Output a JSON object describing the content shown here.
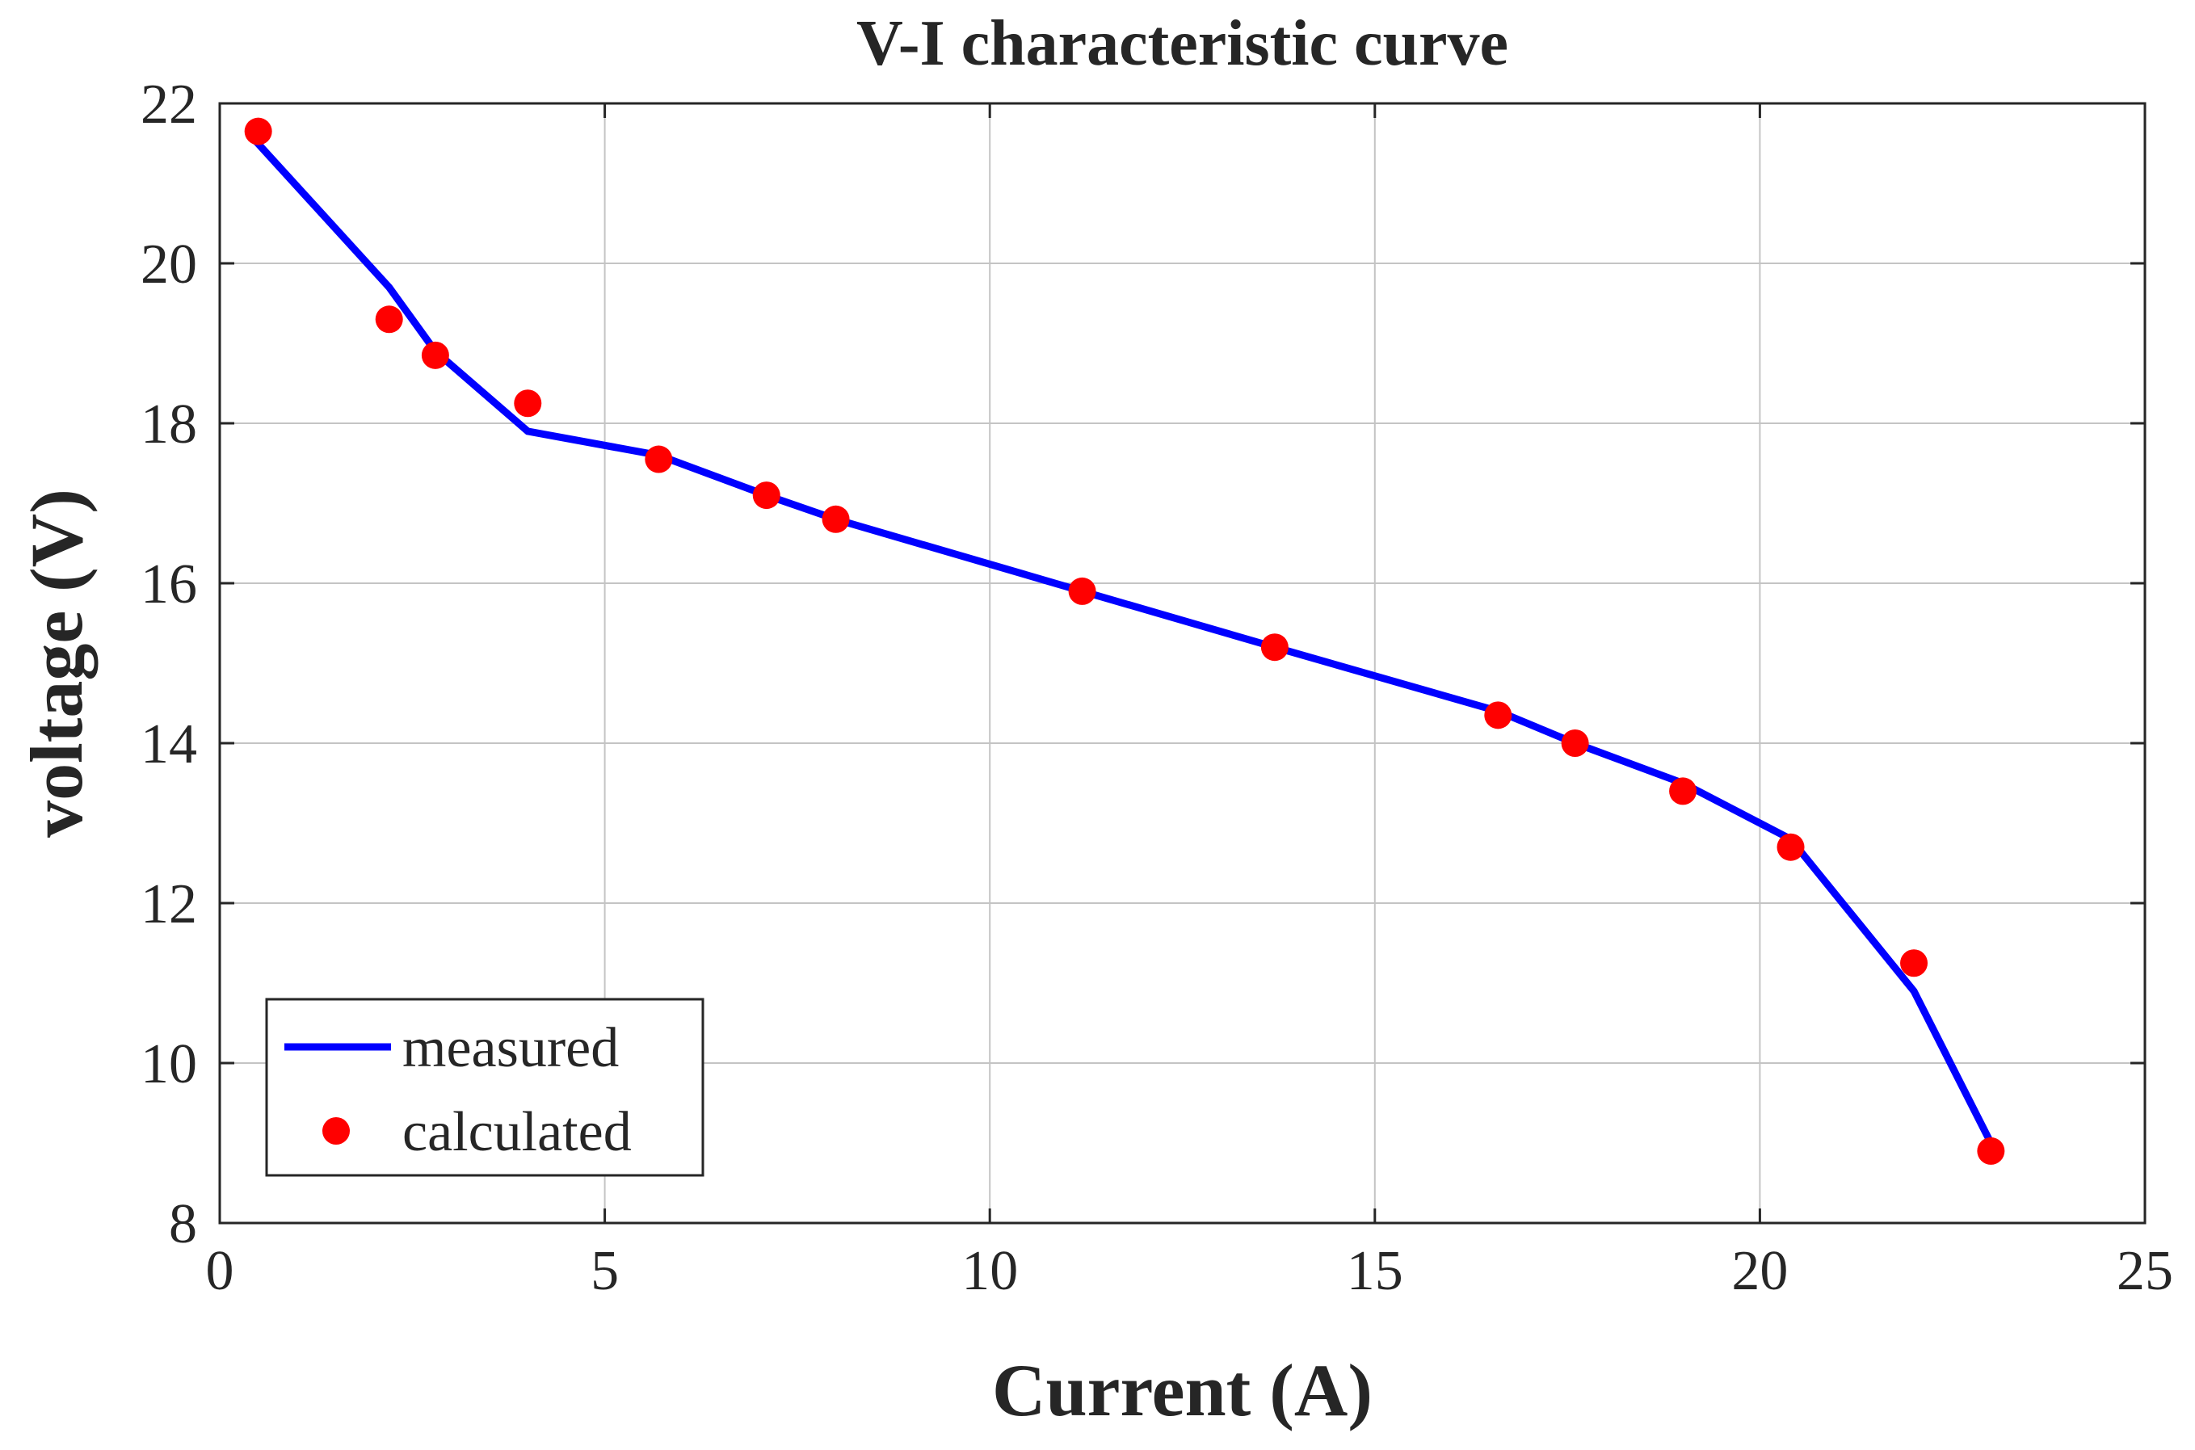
{
  "chart_data": {
    "type": "line",
    "title": "V-I characteristic curve",
    "xlabel": "Current (A)",
    "ylabel": "voltage (V)",
    "xlim": [
      0,
      25
    ],
    "ylim": [
      8,
      22
    ],
    "xticks": [
      0,
      5,
      10,
      15,
      20,
      25
    ],
    "yticks": [
      8,
      10,
      12,
      14,
      16,
      18,
      20,
      22
    ],
    "grid": true,
    "legend_position": "bottom-left",
    "series": [
      {
        "name": "measured",
        "style": "line",
        "color": "#0000ff",
        "x": [
          0.4,
          2.2,
          2.8,
          4.0,
          5.7,
          7.1,
          8.0,
          11.2,
          13.7,
          16.6,
          17.6,
          19.0,
          20.4,
          22.0,
          23.0
        ],
        "y": [
          21.6,
          19.7,
          18.9,
          17.9,
          17.6,
          17.1,
          16.8,
          15.9,
          15.2,
          14.4,
          14.0,
          13.5,
          12.8,
          10.9,
          9.0
        ]
      },
      {
        "name": "calculated",
        "style": "markers",
        "color": "#ff0000",
        "x": [
          0.5,
          2.2,
          2.8,
          4.0,
          5.7,
          7.1,
          8.0,
          11.2,
          13.7,
          16.6,
          17.6,
          19.0,
          20.4,
          22.0,
          23.0
        ],
        "y": [
          21.65,
          19.3,
          18.85,
          18.25,
          17.55,
          17.1,
          16.8,
          15.9,
          15.2,
          14.35,
          14.0,
          13.4,
          12.7,
          11.25,
          8.9
        ]
      }
    ]
  }
}
